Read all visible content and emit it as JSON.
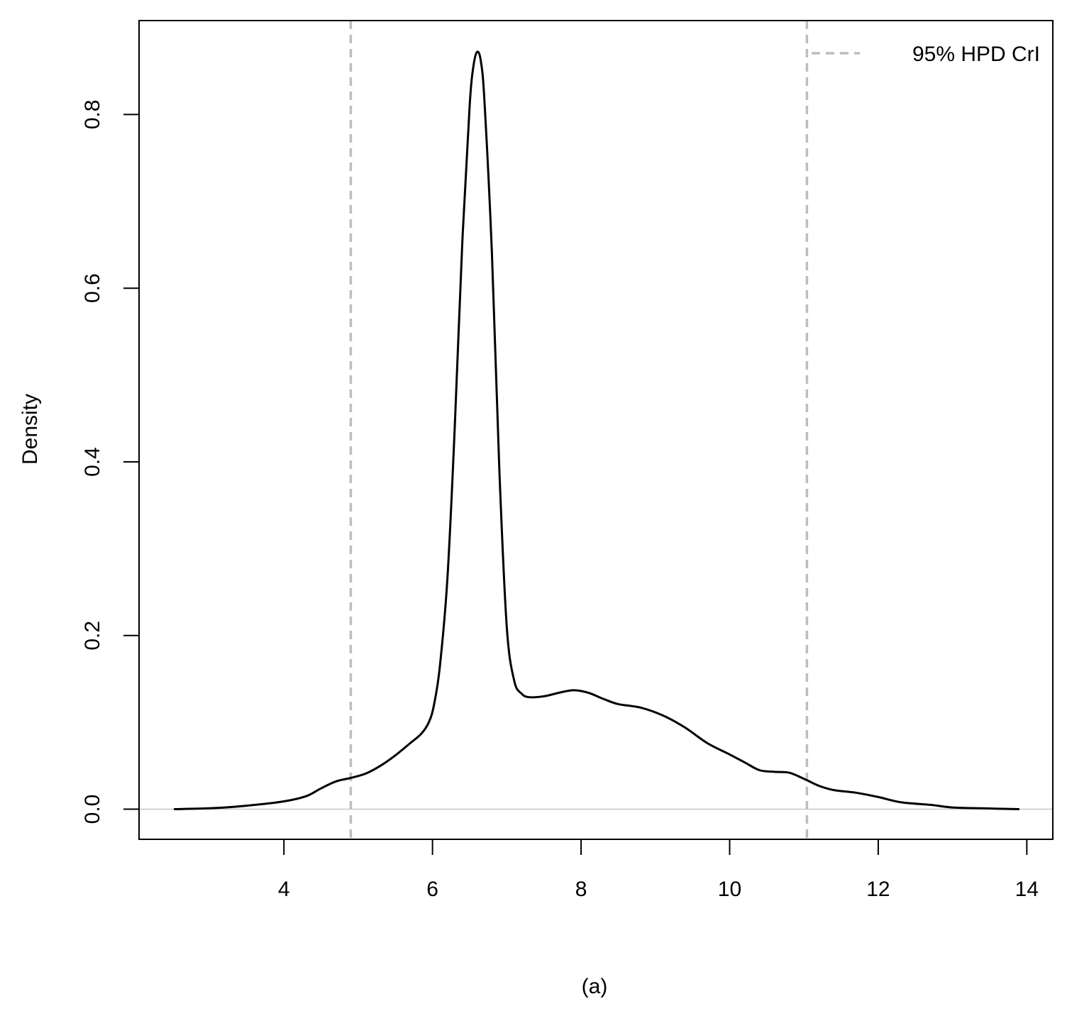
{
  "chart_data": {
    "type": "line",
    "title": "",
    "xlabel": "",
    "ylabel": "Density",
    "caption": "(a)",
    "xlim": [
      2.05,
      14.35
    ],
    "ylim": [
      -0.0347,
      0.9082
    ],
    "x_ticks": [
      4,
      6,
      8,
      10,
      12,
      14
    ],
    "x_tick_labels": [
      "4",
      "6",
      "8",
      "10",
      "12",
      "14"
    ],
    "y_ticks": [
      0.0,
      0.2,
      0.4,
      0.6,
      0.8
    ],
    "y_tick_labels": [
      "0.0",
      "0.2",
      "0.4",
      "0.6",
      "0.8"
    ],
    "grid": false,
    "baseline": {
      "y": 0.0,
      "color": "#c8c8c8"
    },
    "legend": {
      "position": "top-right",
      "entries": [
        {
          "label": "95% HPD CrI",
          "color": "#bebebe",
          "style": "dashed"
        }
      ]
    },
    "reference_lines": [
      {
        "axis": "x",
        "value": 4.9,
        "color": "#bebebe",
        "style": "dashed",
        "legend_ref": "95% HPD CrI"
      },
      {
        "axis": "x",
        "value": 11.04,
        "color": "#bebebe",
        "style": "dashed",
        "legend_ref": "95% HPD CrI"
      }
    ],
    "series": [
      {
        "color": "#000000",
        "points": [
          [
            2.52,
            0.0
          ],
          [
            3.0,
            0.001
          ],
          [
            3.5,
            0.004
          ],
          [
            4.0,
            0.009
          ],
          [
            4.3,
            0.015
          ],
          [
            4.5,
            0.024
          ],
          [
            4.7,
            0.032
          ],
          [
            4.9,
            0.036
          ],
          [
            5.1,
            0.041
          ],
          [
            5.3,
            0.05
          ],
          [
            5.5,
            0.062
          ],
          [
            5.7,
            0.076
          ],
          [
            5.85,
            0.087
          ],
          [
            5.95,
            0.1
          ],
          [
            6.02,
            0.12
          ],
          [
            6.1,
            0.165
          ],
          [
            6.2,
            0.265
          ],
          [
            6.3,
            0.44
          ],
          [
            6.4,
            0.65
          ],
          [
            6.5,
            0.81
          ],
          [
            6.55,
            0.855
          ],
          [
            6.6,
            0.872
          ],
          [
            6.65,
            0.862
          ],
          [
            6.7,
            0.815
          ],
          [
            6.8,
            0.64
          ],
          [
            6.9,
            0.39
          ],
          [
            7.0,
            0.21
          ],
          [
            7.1,
            0.148
          ],
          [
            7.2,
            0.133
          ],
          [
            7.3,
            0.129
          ],
          [
            7.5,
            0.13
          ],
          [
            7.7,
            0.134
          ],
          [
            7.9,
            0.137
          ],
          [
            8.1,
            0.134
          ],
          [
            8.3,
            0.127
          ],
          [
            8.5,
            0.121
          ],
          [
            8.8,
            0.117
          ],
          [
            9.1,
            0.108
          ],
          [
            9.4,
            0.094
          ],
          [
            9.7,
            0.076
          ],
          [
            10.0,
            0.063
          ],
          [
            10.2,
            0.054
          ],
          [
            10.4,
            0.045
          ],
          [
            10.6,
            0.043
          ],
          [
            10.8,
            0.042
          ],
          [
            11.0,
            0.035
          ],
          [
            11.2,
            0.027
          ],
          [
            11.4,
            0.022
          ],
          [
            11.7,
            0.019
          ],
          [
            12.0,
            0.014
          ],
          [
            12.3,
            0.008
          ],
          [
            12.7,
            0.005
          ],
          [
            13.0,
            0.002
          ],
          [
            13.4,
            0.001
          ],
          [
            13.9,
            0.0
          ]
        ]
      }
    ]
  }
}
